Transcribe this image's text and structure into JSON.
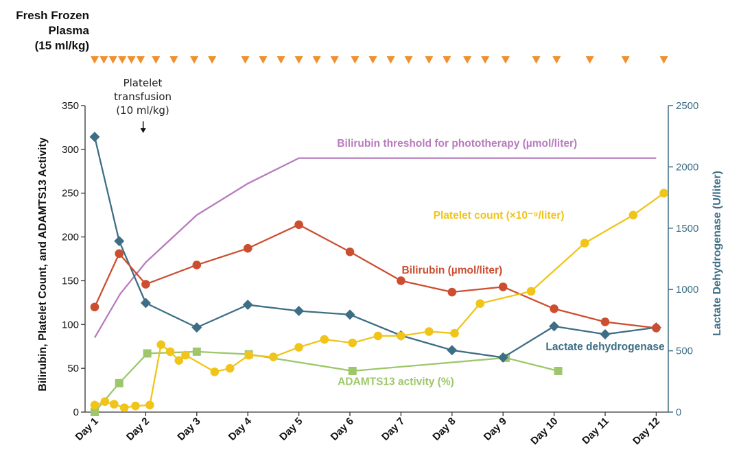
{
  "ffp_label": [
    "Fresh Frozen",
    "Plasma",
    "(15 ml/kg)"
  ],
  "platelet_transfusion_note": [
    "Platelet",
    "transfusion",
    "(10 ml/kg)"
  ],
  "chart_data": {
    "type": "line",
    "x_categories": [
      "Day 1",
      "Day 2",
      "Day 3",
      "Day 4",
      "Day 5",
      "Day 6",
      "Day 7",
      "Day 8",
      "Day 9",
      "Day 10",
      "Day 11",
      "Day 12"
    ],
    "left_axis": {
      "label": "Bilirubin, Platelet Count, and ADAMTS13 Activity",
      "ylim": [
        0,
        350
      ],
      "ticks": [
        0,
        50,
        100,
        150,
        200,
        250,
        300,
        350
      ]
    },
    "right_axis": {
      "label": "Lactate Dehydrogenase (U/liter)",
      "ylim": [
        0,
        2500
      ],
      "ticks": [
        0,
        500,
        1000,
        1500,
        2000,
        2500
      ],
      "color": "#3d6e85"
    },
    "ffp_markers_day": [
      1.0,
      1.18,
      1.36,
      1.54,
      1.72,
      1.9,
      2.2,
      2.55,
      2.95,
      3.3,
      3.95,
      4.3,
      4.65,
      5.0,
      5.35,
      5.7,
      6.1,
      6.45,
      6.8,
      7.15,
      7.55,
      7.9,
      8.3,
      8.65,
      9.05,
      9.65,
      10.05,
      10.7,
      11.4,
      12.15
    ],
    "ffp_color": "#f0902e",
    "platelet_transfusion_day": 1.95,
    "series": [
      {
        "name": "Bilirubin threshold for phototherapy (µmol/liter)",
        "axis": "left",
        "color": "#b77bbd",
        "marker": "none",
        "label_day": 8.1,
        "label_value": 303,
        "label_anchor": "middle",
        "points": [
          [
            1,
            85
          ],
          [
            1.5,
            135
          ],
          [
            2,
            171
          ],
          [
            3,
            225
          ],
          [
            4,
            261
          ],
          [
            5,
            290
          ],
          [
            6,
            290
          ],
          [
            7,
            290
          ],
          [
            8,
            290
          ],
          [
            9,
            290
          ],
          [
            10,
            290
          ],
          [
            11,
            290
          ],
          [
            12,
            290
          ]
        ]
      },
      {
        "name": "Bilirubin (µmol/liter)",
        "axis": "left",
        "color": "#cc4e30",
        "marker": "circle",
        "label_day": 8.0,
        "label_value": 158,
        "label_anchor": "middle",
        "points": [
          [
            1,
            120
          ],
          [
            1.48,
            181
          ],
          [
            2,
            146
          ],
          [
            3,
            168
          ],
          [
            4,
            187
          ],
          [
            5,
            214
          ],
          [
            6,
            183
          ],
          [
            7,
            150
          ],
          [
            8,
            137
          ],
          [
            9,
            143
          ],
          [
            10,
            118
          ],
          [
            11,
            103
          ],
          [
            12,
            96
          ]
        ]
      },
      {
        "name": "Platelet count (×10⁻⁹/liter)",
        "axis": "left",
        "color": "#f0c419",
        "marker": "circle",
        "label_day": 10.2,
        "label_value": 221,
        "label_anchor": "end",
        "points": [
          [
            1,
            8
          ],
          [
            1.2,
            12
          ],
          [
            1.38,
            9
          ],
          [
            1.58,
            5
          ],
          [
            1.8,
            7
          ],
          [
            2.08,
            8
          ],
          [
            2.3,
            77
          ],
          [
            2.48,
            69
          ],
          [
            2.65,
            59
          ],
          [
            2.78,
            65
          ],
          [
            3.35,
            46
          ],
          [
            3.65,
            50
          ],
          [
            4.02,
            65
          ],
          [
            4.5,
            63
          ],
          [
            5.0,
            74
          ],
          [
            5.5,
            83
          ],
          [
            6.05,
            79
          ],
          [
            6.55,
            87
          ],
          [
            7.0,
            87
          ],
          [
            7.55,
            92
          ],
          [
            8.05,
            90
          ],
          [
            8.55,
            124
          ],
          [
            9.55,
            138
          ],
          [
            10.6,
            193
          ],
          [
            11.55,
            225
          ],
          [
            12.15,
            250
          ]
        ]
      },
      {
        "name": "Lactate dehydrogenase",
        "axis": "right",
        "color": "#3d6e85",
        "marker": "diamond",
        "label_day": 11.0,
        "label_value": 505,
        "label_anchor": "middle",
        "points": [
          [
            1,
            2245
          ],
          [
            1.48,
            1395
          ],
          [
            2,
            890
          ],
          [
            3,
            690
          ],
          [
            4,
            875
          ],
          [
            5,
            825
          ],
          [
            6,
            795
          ],
          [
            7,
            625
          ],
          [
            8,
            505
          ],
          [
            9,
            445
          ],
          [
            10,
            700
          ],
          [
            11,
            635
          ],
          [
            12,
            690
          ]
        ]
      },
      {
        "name": "ADAMTS13 activity (%)",
        "axis": "left",
        "color": "#9dc76a",
        "marker": "square",
        "label_day": 6.9,
        "label_value": 31,
        "label_anchor": "middle",
        "points": [
          [
            1,
            0
          ],
          [
            1.48,
            33
          ],
          [
            2.03,
            67
          ],
          [
            3,
            69
          ],
          [
            4.02,
            66
          ],
          [
            6.05,
            47
          ],
          [
            9.05,
            62
          ],
          [
            10.08,
            47
          ]
        ]
      }
    ]
  }
}
